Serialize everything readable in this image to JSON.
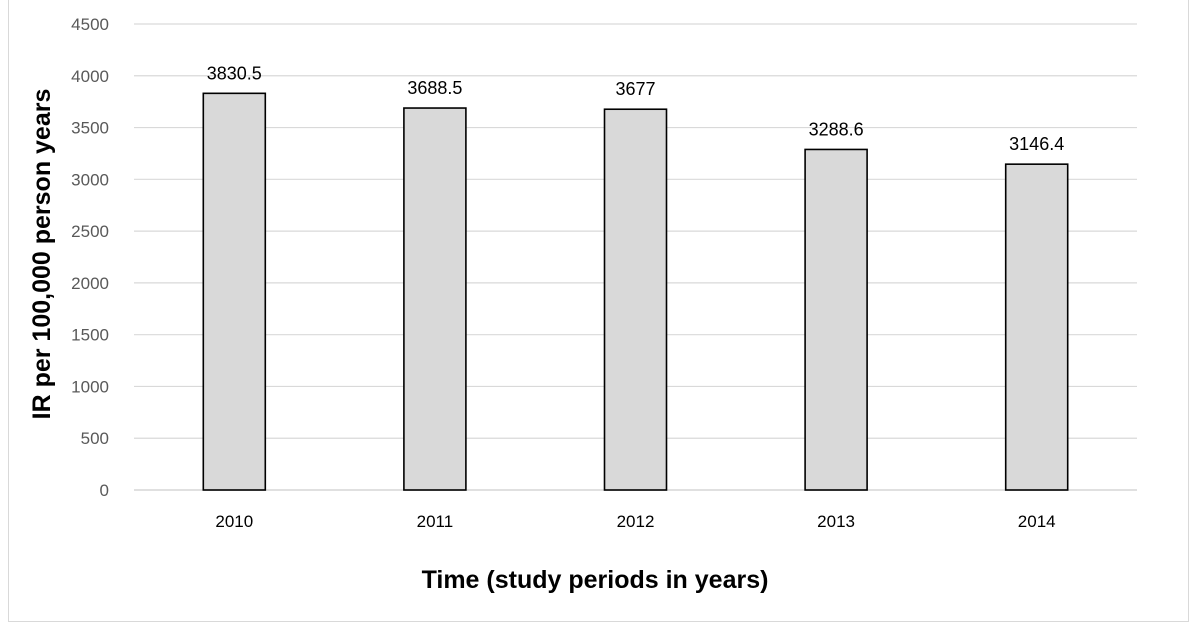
{
  "chart_data": {
    "type": "bar",
    "categories": [
      "2010",
      "2011",
      "2012",
      "2013",
      "2014"
    ],
    "values": [
      3830.5,
      3688.5,
      3677,
      3288.6,
      3146.4
    ],
    "data_labels": [
      "3830.5",
      "3688.5",
      "3677",
      "3288.6",
      "3146.4"
    ],
    "title": "",
    "xlabel": "Time (study periods in years)",
    "ylabel": "IR per 100,000 person years",
    "ylim": [
      0,
      4500
    ],
    "yticks": [
      0,
      500,
      1000,
      1500,
      2000,
      2500,
      3000,
      3500,
      4000,
      4500
    ],
    "grid": true,
    "legend": "none",
    "colors": {
      "bar_fill": "#d9d9d9",
      "bar_stroke": "#000000",
      "grid": "#d9d9d9"
    }
  }
}
